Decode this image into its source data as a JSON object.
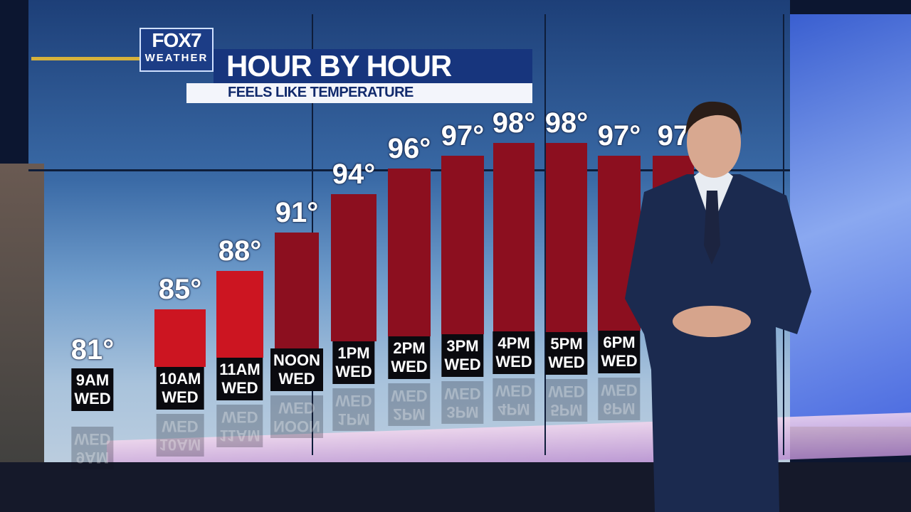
{
  "header": {
    "logo_line1": "FOX7",
    "logo_line2": "WEATHER",
    "title": "HOUR BY HOUR",
    "subtitle": "FEELS LIKE TEMPERATURE"
  },
  "colors": {
    "bar_first": "#cc1521",
    "bar": "#8c0f1f",
    "title_bar": "#17357d"
  },
  "chart_data": {
    "type": "bar",
    "title": "HOUR BY HOUR",
    "subtitle": "FEELS LIKE TEMPERATURE",
    "categories": [
      "9AM\nWED",
      "10AM\nWED",
      "11AM\nWED",
      "NOON\nWED",
      "1PM\nWED",
      "2PM\nWED",
      "3PM\nWED",
      "4PM\nWED",
      "5PM\nWED",
      "6PM\nWED",
      ""
    ],
    "values": [
      81,
      85,
      88,
      91,
      94,
      96,
      97,
      98,
      98,
      97,
      97
    ],
    "value_labels": [
      "81°",
      "85°",
      "88°",
      "91°",
      "94°",
      "96°",
      "97°",
      "98°",
      "98°",
      "97°",
      "97"
    ],
    "unit": "°F"
  }
}
